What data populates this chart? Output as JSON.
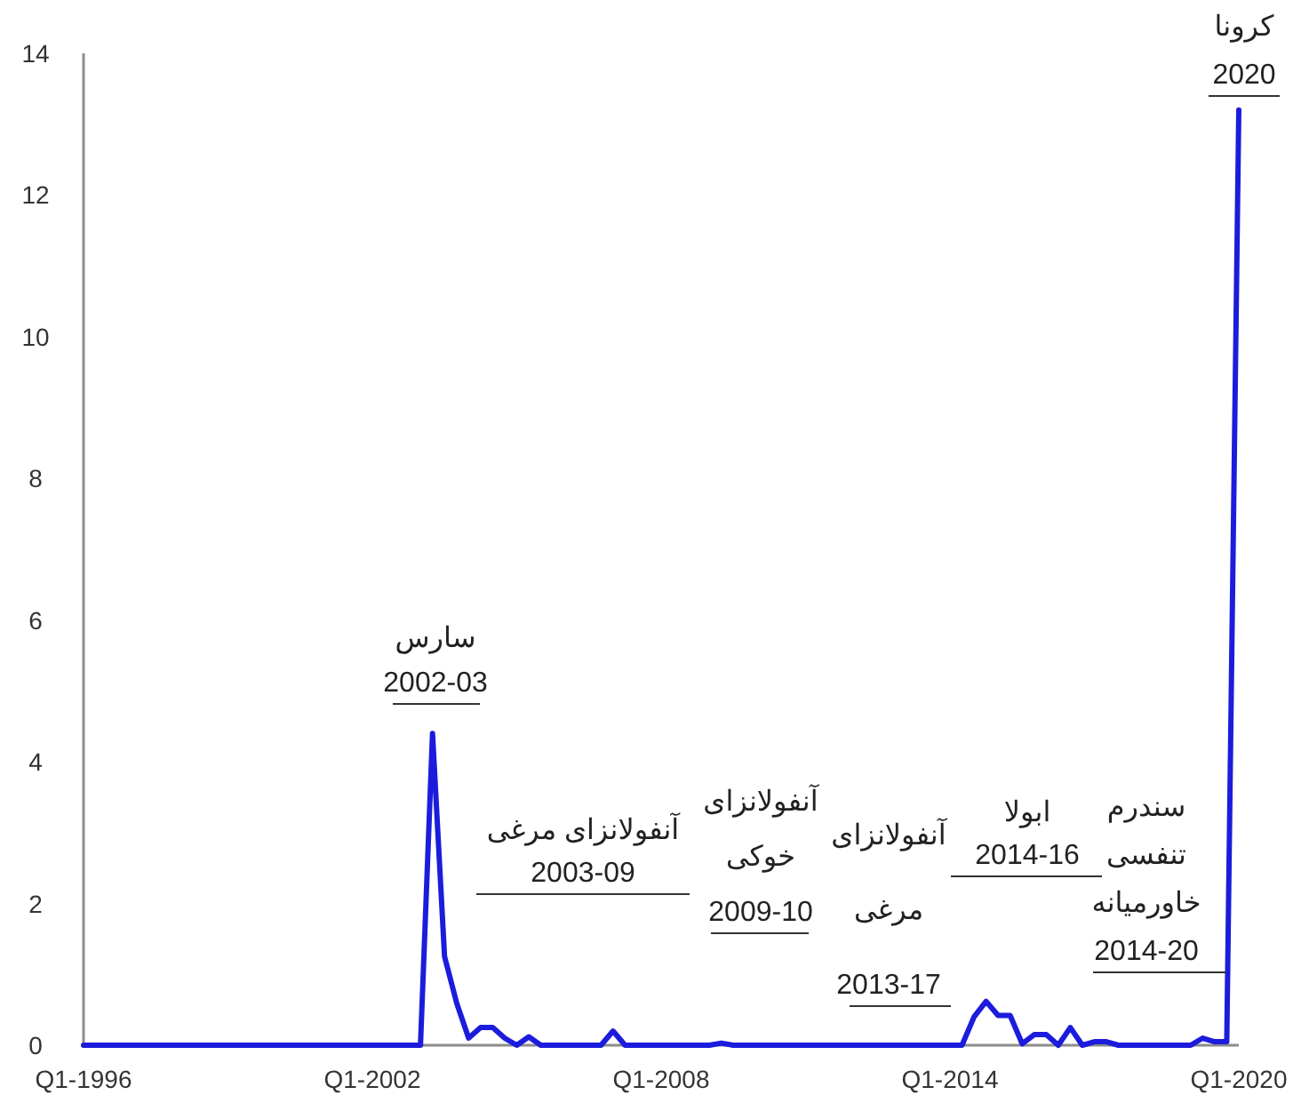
{
  "chart_data": {
    "type": "line",
    "categories": [
      "Q1-1996",
      null,
      null,
      null,
      null,
      null,
      null,
      null,
      null,
      null,
      null,
      null,
      null,
      null,
      null,
      null,
      null,
      null,
      null,
      null,
      null,
      null,
      null,
      null,
      "Q1-2002",
      null,
      null,
      null,
      null,
      null,
      null,
      null,
      null,
      null,
      null,
      null,
      null,
      null,
      null,
      null,
      null,
      null,
      null,
      null,
      null,
      null,
      null,
      null,
      "Q1-2008",
      null,
      null,
      null,
      null,
      null,
      null,
      null,
      null,
      null,
      null,
      null,
      null,
      null,
      null,
      null,
      null,
      null,
      null,
      null,
      null,
      null,
      null,
      null,
      "Q1-2014",
      null,
      null,
      null,
      null,
      null,
      null,
      null,
      null,
      null,
      null,
      null,
      null,
      null,
      null,
      null,
      null,
      null,
      null,
      null,
      null,
      null,
      null,
      null,
      "Q1-2020"
    ],
    "series": [
      {
        "color": "#1c1cdc",
        "values": [
          0,
          0,
          0,
          0,
          0,
          0,
          0,
          0,
          0,
          0,
          0,
          0,
          0,
          0,
          0,
          0,
          0,
          0,
          0,
          0,
          0,
          0,
          0,
          0,
          0,
          0,
          0,
          0,
          0,
          4.4,
          1.25,
          0.6,
          0.1,
          0.25,
          0.25,
          0.1,
          0,
          0.12,
          0,
          0,
          0,
          0,
          0,
          0,
          0.2,
          0,
          0,
          0,
          0,
          0,
          0,
          0,
          0,
          0.03,
          0,
          0,
          0,
          0,
          0,
          0,
          0,
          0,
          0,
          0,
          0,
          0,
          0,
          0,
          0,
          0,
          0,
          0,
          0,
          0,
          0.4,
          0.62,
          0.42,
          0.42,
          0.02,
          0.15,
          0.15,
          0,
          0.25,
          0,
          0.05,
          0.05,
          0,
          0,
          0,
          0,
          0,
          0,
          0,
          0.1,
          0.05,
          0.05,
          13.2
        ]
      }
    ],
    "ylim": [
      0,
      14
    ],
    "yticks": [
      0,
      2,
      4,
      6,
      8,
      10,
      12,
      14
    ],
    "grid": false,
    "marker": "none",
    "line_style": "solid",
    "annotations": [
      "سارس\n2002-03",
      "آنفولانزای مرغی\n2003-09",
      "آنفولانزای\nخوکی\n2009-10",
      "آنفولانزای\nمرغی\n2013-17",
      "ابولا\n2014-16",
      "سندرم\nتنفسی\nخاورمیانه\n2014-20",
      "کرونا\n2020"
    ]
  }
}
